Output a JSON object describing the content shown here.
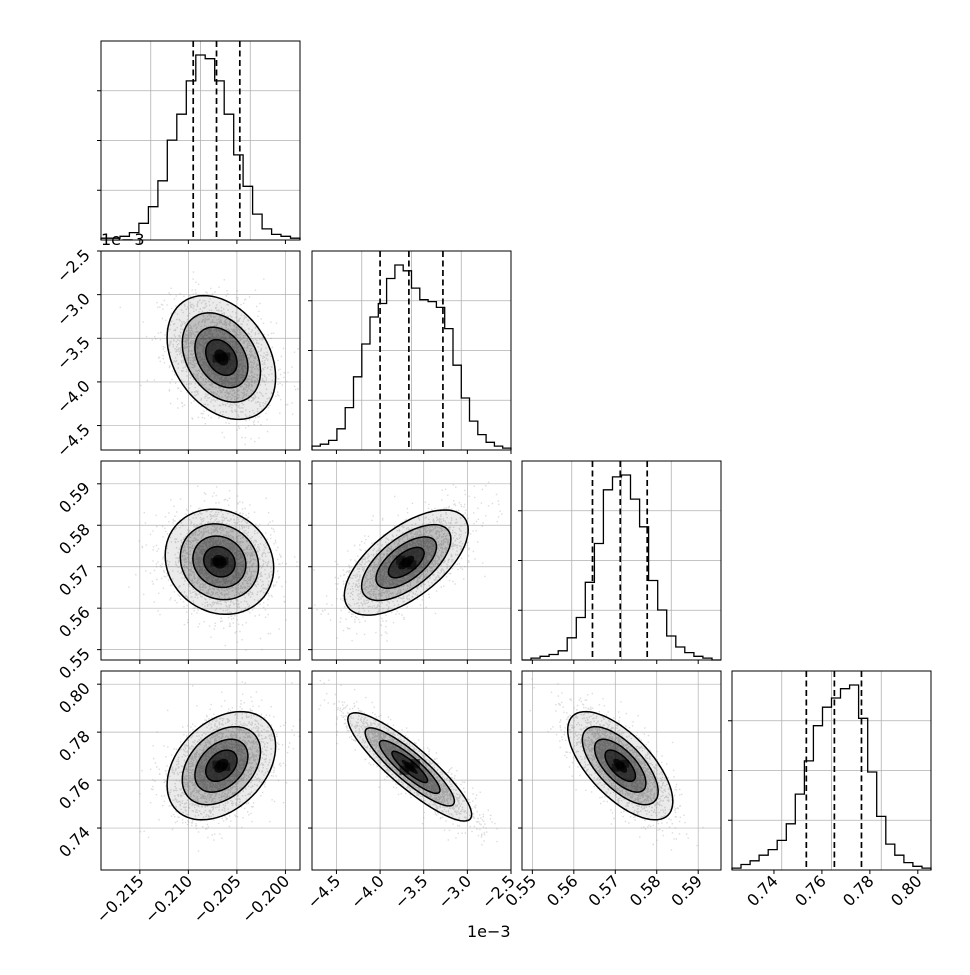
{
  "chart_data": {
    "type": "corner",
    "parameters": [
      {
        "range": [
          -0.219,
          -0.1985
        ],
        "ticks": [
          "-0.215",
          "-0.210",
          "-0.205",
          "-0.200"
        ],
        "tick_values": [
          -0.215,
          -0.21,
          -0.205,
          -0.2
        ],
        "quantiles": [
          -0.2095,
          -0.2071,
          -0.2047
        ]
      },
      {
        "range": [
          -4.78,
          -2.5
        ],
        "ticks": [
          "-4.5",
          "-4.0",
          "-3.5",
          "-3.0",
          "-2.5"
        ],
        "tick_values": [
          -4.5,
          -4.0,
          -3.5,
          -3.0,
          -2.5
        ],
        "offset_label": "1e−3",
        "quantiles": [
          -4.0,
          -3.67,
          -3.28
        ]
      },
      {
        "range": [
          0.5475,
          0.5955
        ],
        "ticks": [
          "0.55",
          "0.56",
          "0.57",
          "0.58",
          "0.59"
        ],
        "tick_values": [
          0.55,
          0.56,
          0.57,
          0.58,
          0.59
        ],
        "quantiles": [
          0.5645,
          0.5712,
          0.5777
        ]
      },
      {
        "range": [
          0.7225,
          0.8055
        ],
        "ticks": [
          "0.74",
          "0.76",
          "0.78",
          "0.80"
        ],
        "tick_values": [
          0.74,
          0.76,
          0.78,
          0.8
        ],
        "quantiles": [
          0.7535,
          0.7652,
          0.7765
        ]
      }
    ],
    "histograms": [
      {
        "counts": [
          1,
          1,
          2,
          4,
          9,
          18,
          32,
          54,
          68,
          86,
          100,
          98,
          86,
          68,
          46,
          29,
          14,
          6,
          3,
          2,
          1
        ]
      },
      {
        "counts": [
          2,
          3,
          5,
          11,
          22,
          38,
          55,
          69,
          76,
          89,
          96,
          93,
          84,
          78,
          77,
          74,
          63,
          44,
          27,
          15,
          8,
          4,
          2,
          1
        ]
      },
      {
        "counts": [
          0,
          1,
          2,
          3,
          5,
          12,
          23,
          42,
          63,
          92,
          99,
          100,
          87,
          72,
          43,
          27,
          13,
          7,
          4,
          2,
          1,
          0
        ]
      },
      {
        "counts": [
          1,
          3,
          5,
          8,
          11,
          16,
          25,
          41,
          59,
          78,
          88,
          93,
          98,
          100,
          82,
          53,
          29,
          14,
          8,
          4,
          2,
          1
        ]
      }
    ],
    "pairs": [
      {
        "row": 1,
        "col": 0,
        "center": [
          -0.2066,
          -3.72
        ],
        "spread": [
          0.0026,
          0.33
        ],
        "corr": -0.32
      },
      {
        "row": 2,
        "col": 0,
        "center": [
          -0.2068,
          0.5712
        ],
        "spread": [
          0.0026,
          0.0059
        ],
        "corr": -0.12
      },
      {
        "row": 2,
        "col": 1,
        "center": [
          -3.7,
          0.571
        ],
        "spread": [
          0.33,
          0.0059
        ],
        "corr": 0.62
      },
      {
        "row": 3,
        "col": 0,
        "center": [
          -0.2066,
          0.766
        ],
        "spread": [
          0.0026,
          0.0105
        ],
        "corr": 0.36
      },
      {
        "row": 3,
        "col": 1,
        "center": [
          -3.66,
          0.7655
        ],
        "spread": [
          0.33,
          0.0105
        ],
        "corr": -0.88
      },
      {
        "row": 3,
        "col": 2,
        "center": [
          0.5712,
          0.766
        ],
        "spread": [
          0.0059,
          0.0105
        ],
        "corr": -0.66
      }
    ]
  },
  "offset_labels": {
    "top_left": "1e−3",
    "bottom": "1e−3"
  }
}
